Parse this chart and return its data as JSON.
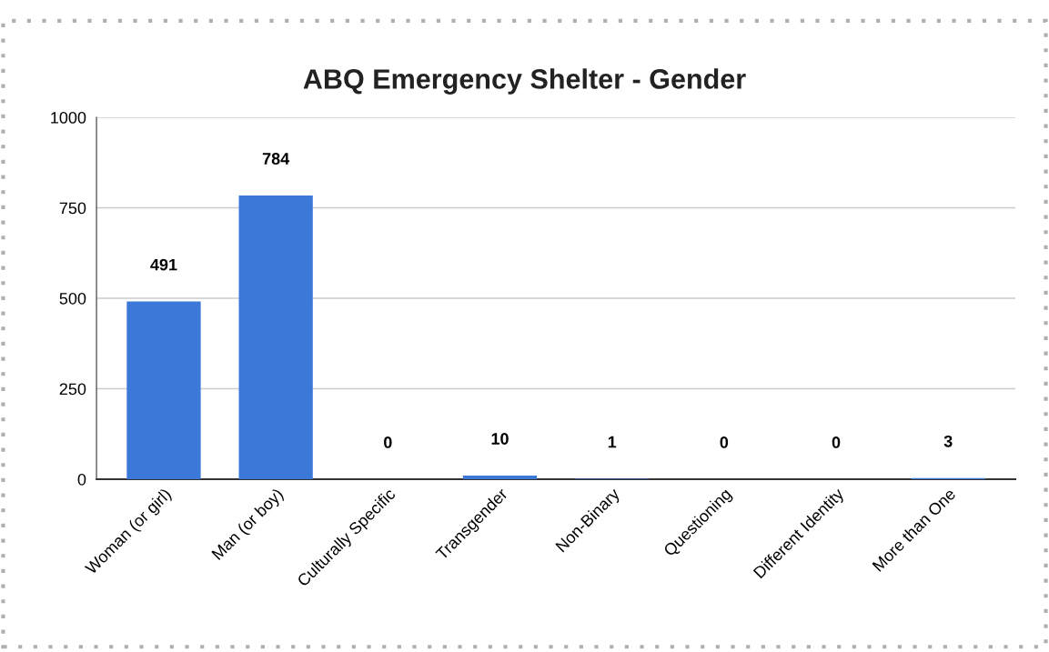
{
  "chart_data": {
    "type": "bar",
    "title": "ABQ Emergency Shelter - Gender",
    "categories": [
      "Woman (or girl)",
      "Man (or boy)",
      "Culturally Specific",
      "Transgender",
      "Non-Binary",
      "Questioning",
      "Different Identity",
      "More than One"
    ],
    "values": [
      491,
      784,
      0,
      10,
      1,
      0,
      0,
      3
    ],
    "color": "#3c78d8",
    "ylim": [
      0,
      1000
    ],
    "yticks": [
      0,
      250,
      500,
      750,
      1000
    ],
    "grid": "y",
    "data_labels": true,
    "legend": false
  }
}
